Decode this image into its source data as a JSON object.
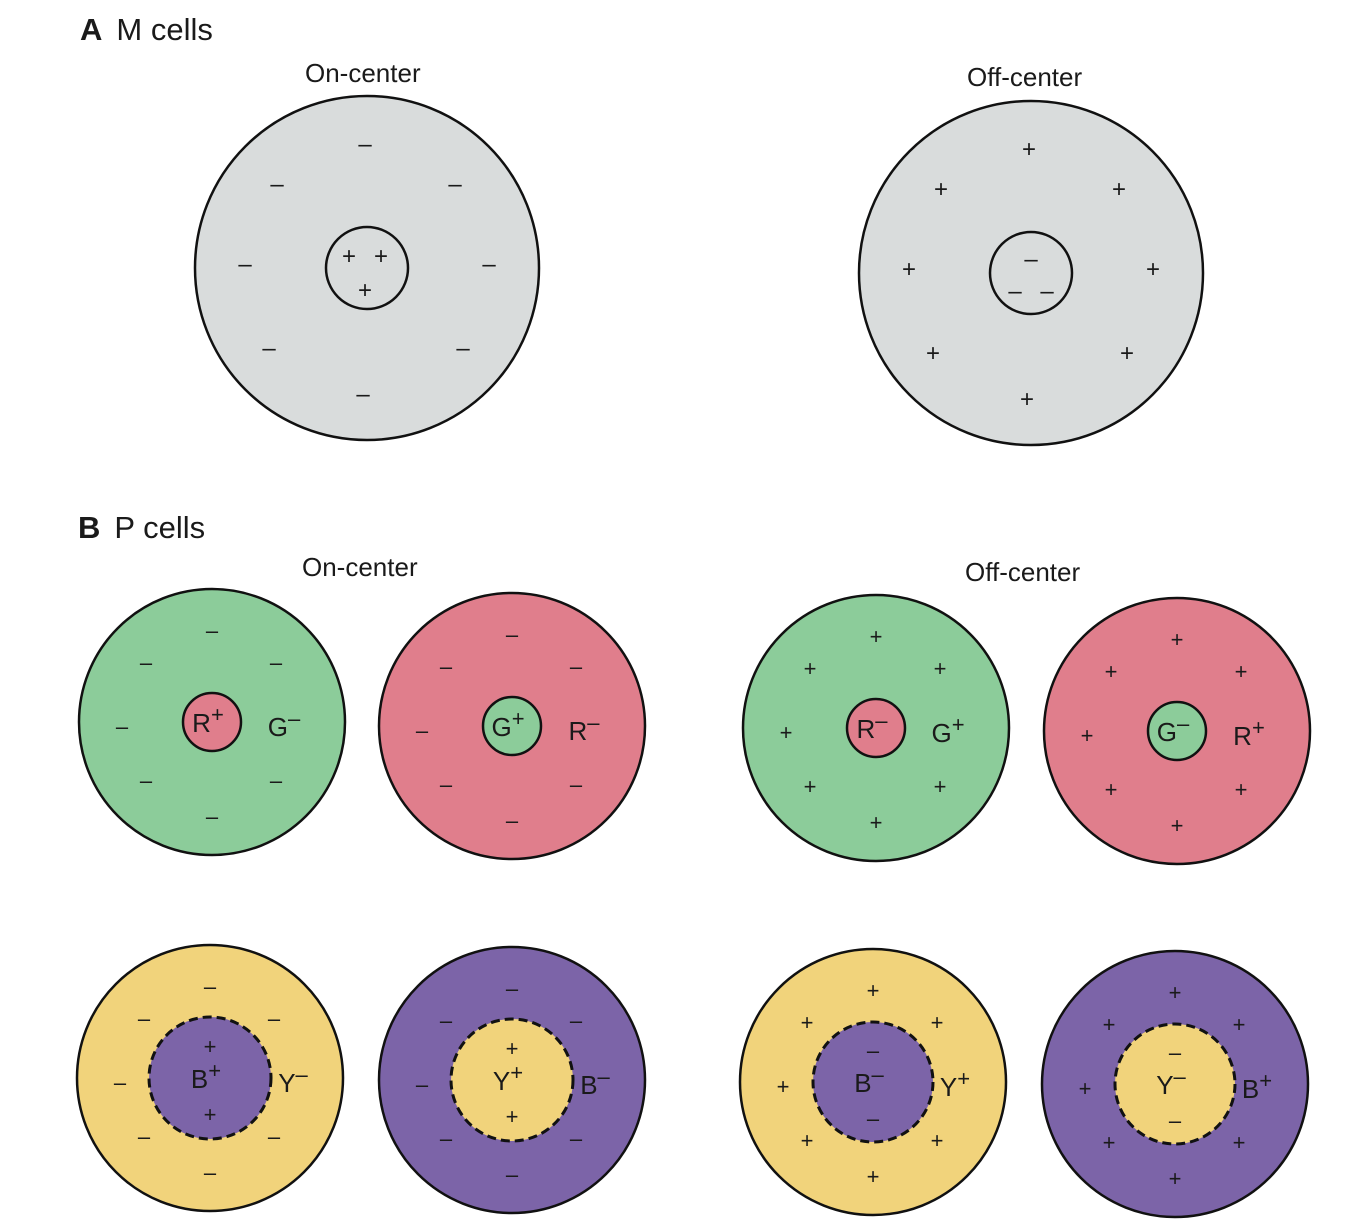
{
  "section_a": {
    "letter": "A",
    "title": "M cells",
    "on_center_label": "On-center",
    "off_center_label": "Off-center"
  },
  "section_b": {
    "letter": "B",
    "title": "P cells",
    "on_center_label": "On-center",
    "off_center_label": "Off-center"
  },
  "colors": {
    "gray": "#d9dcdc",
    "green": "#8ccc9a",
    "red": "#e07e8c",
    "yellow": "#f1d37b",
    "purple": "#7c64a8",
    "stroke": "#111111"
  },
  "cells": [
    {
      "id": "m-on",
      "surround_color": "gray",
      "center_color": "gray",
      "dashed": false,
      "surround_sign": "–",
      "center_sign": "+",
      "center_label": "",
      "surround_label": ""
    },
    {
      "id": "m-off",
      "surround_color": "gray",
      "center_color": "gray",
      "dashed": false,
      "surround_sign": "+",
      "center_sign": "–",
      "center_label": "",
      "surround_label": ""
    },
    {
      "id": "p-on-rg",
      "surround_color": "green",
      "center_color": "red",
      "dashed": false,
      "surround_sign": "–",
      "center_sign": "",
      "center_label": "R+",
      "surround_label": "G–"
    },
    {
      "id": "p-on-gr",
      "surround_color": "red",
      "center_color": "green",
      "dashed": false,
      "surround_sign": "–",
      "center_sign": "",
      "center_label": "G+",
      "surround_label": "R–"
    },
    {
      "id": "p-off-rg",
      "surround_color": "green",
      "center_color": "red",
      "dashed": false,
      "surround_sign": "+",
      "center_sign": "",
      "center_label": "R–",
      "surround_label": "G+"
    },
    {
      "id": "p-off-gr",
      "surround_color": "red",
      "center_color": "green",
      "dashed": false,
      "surround_sign": "+",
      "center_sign": "",
      "center_label": "G–",
      "surround_label": "R+"
    },
    {
      "id": "p-on-by",
      "surround_color": "yellow",
      "center_color": "purple",
      "dashed": true,
      "surround_sign": "–",
      "center_sign": "+",
      "center_label": "B+",
      "surround_label": "Y–"
    },
    {
      "id": "p-on-yb",
      "surround_color": "purple",
      "center_color": "yellow",
      "dashed": true,
      "surround_sign": "–",
      "center_sign": "+",
      "center_label": "Y+",
      "surround_label": "B–"
    },
    {
      "id": "p-off-by",
      "surround_color": "yellow",
      "center_color": "purple",
      "dashed": true,
      "surround_sign": "+",
      "center_sign": "–",
      "center_label": "B–",
      "surround_label": "Y+"
    },
    {
      "id": "p-off-yb",
      "surround_color": "purple",
      "center_color": "yellow",
      "dashed": true,
      "surround_sign": "+",
      "center_sign": "–",
      "center_label": "Y–",
      "surround_label": "B+"
    }
  ]
}
